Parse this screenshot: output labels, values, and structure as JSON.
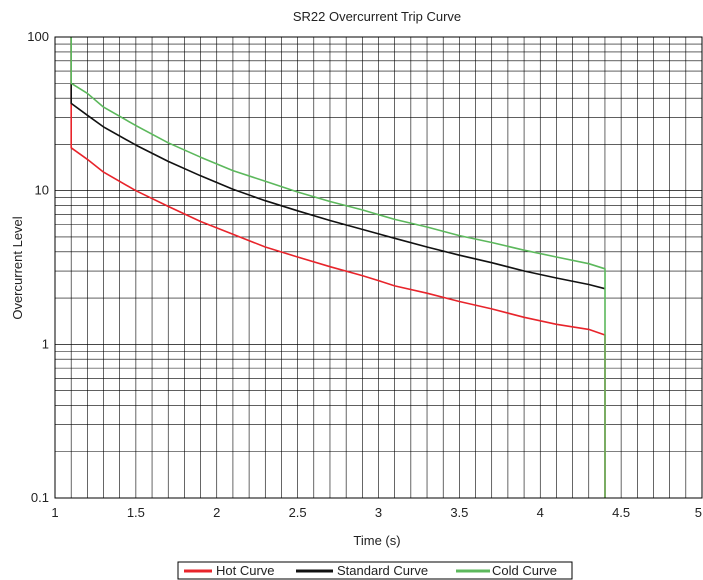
{
  "chart_data": {
    "type": "line",
    "title": "SR22 Overcurrent Trip Curve",
    "xlabel": "Time (s)",
    "ylabel": "Overcurrent Level",
    "xlim": [
      1,
      5
    ],
    "ylim": [
      0.1,
      100
    ],
    "y_scale": "log",
    "grid": true,
    "x_ticks": [
      1,
      1.5,
      2,
      2.5,
      3,
      3.5,
      4,
      4.5,
      5
    ],
    "x_tick_labels": [
      "1",
      "1.5",
      "2",
      "2.5",
      "3",
      "3.5",
      "4",
      "4.5",
      "5"
    ],
    "y_ticks": [
      0.1,
      1,
      10,
      100
    ],
    "y_tick_labels": [
      "0.1",
      "1",
      "10",
      "100"
    ],
    "legend_position": "bottom",
    "series": [
      {
        "name": "Hot Curve",
        "color": "#e8242b",
        "x": [
          1.1,
          1.1,
          1.2,
          1.3,
          1.5,
          1.7,
          1.9,
          2.1,
          2.3,
          2.5,
          2.7,
          2.9,
          3.0,
          3.1,
          3.3,
          3.5,
          3.7,
          3.9,
          4.1,
          4.3,
          4.4,
          4.4
        ],
        "y": [
          100,
          19,
          16,
          13.2,
          10,
          7.9,
          6.3,
          5.2,
          4.3,
          3.7,
          3.2,
          2.8,
          2.6,
          2.4,
          2.15,
          1.9,
          1.7,
          1.5,
          1.35,
          1.25,
          1.15,
          0.1
        ]
      },
      {
        "name": "Standard Curve",
        "color": "#111111",
        "x": [
          1.1,
          1.1,
          1.2,
          1.3,
          1.5,
          1.7,
          1.9,
          2.1,
          2.3,
          2.5,
          2.7,
          2.9,
          3.1,
          3.3,
          3.5,
          3.7,
          3.9,
          4.1,
          4.3,
          4.4
        ],
        "y": [
          100,
          37,
          31,
          26,
          19.8,
          15.5,
          12.5,
          10.2,
          8.6,
          7.4,
          6.4,
          5.6,
          4.9,
          4.3,
          3.8,
          3.4,
          3.0,
          2.7,
          2.45,
          2.3
        ]
      },
      {
        "name": "Cold Curve",
        "color": "#5cb85c",
        "x": [
          1.1,
          1.1,
          1.2,
          1.3,
          1.5,
          1.7,
          1.9,
          2.1,
          2.3,
          2.5,
          2.7,
          2.9,
          3.1,
          3.3,
          3.5,
          3.7,
          3.9,
          4.1,
          4.3,
          4.4,
          4.4
        ],
        "y": [
          100,
          50,
          43,
          35,
          26.5,
          20.5,
          16.5,
          13.5,
          11.5,
          9.8,
          8.5,
          7.5,
          6.5,
          5.8,
          5.1,
          4.6,
          4.1,
          3.7,
          3.35,
          3.1,
          0.1
        ]
      }
    ]
  }
}
